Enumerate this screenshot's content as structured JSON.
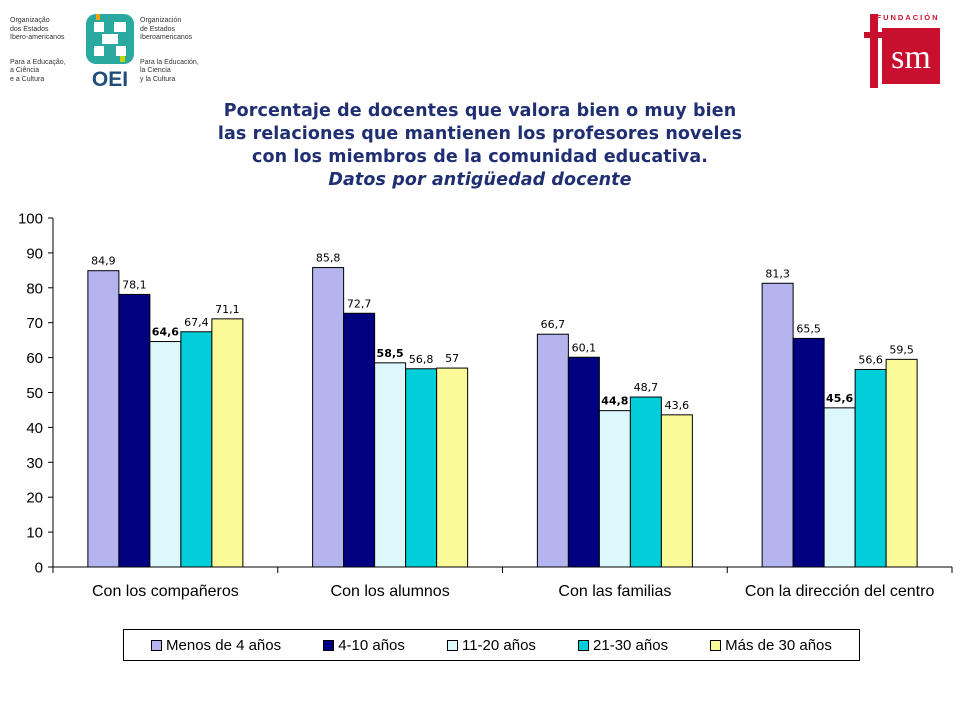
{
  "logos": {
    "oei_left_text": [
      "Organização",
      "dos Estados",
      "Ibero-americanos",
      "",
      "Para a Educação,",
      "a Ciência",
      "e a Cultura"
    ],
    "oei_right_text": [
      "Organización",
      "de Estados",
      "Iberoamericanos",
      "",
      "Para la Educación,",
      "la Ciencia",
      "y la Cultura"
    ],
    "oei_mark": "OEI",
    "fsm_top": "FUNDACIÓN",
    "fsm_mark": "sm"
  },
  "title": {
    "line1": "Porcentaje de docentes que valora bien o muy bien",
    "line2": "las relaciones que mantienen los profesores noveles",
    "line3": "con los miembros de la comunidad educativa.",
    "subtitle": "Datos por antigüedad docente"
  },
  "chart_data": {
    "type": "bar",
    "categories": [
      "Con los compañeros",
      "Con los alumnos",
      "Con las familias",
      "Con la dirección del centro"
    ],
    "series": [
      {
        "name": "Menos de 4 años",
        "color": "#b4b4ee",
        "values": [
          84.9,
          85.8,
          66.7,
          81.3
        ],
        "labels": [
          "84,9",
          "85,8",
          "66,7",
          "81,3"
        ]
      },
      {
        "name": "4-10 años",
        "color": "#000080",
        "values": [
          78.1,
          72.7,
          60.1,
          65.5
        ],
        "labels": [
          "78,1",
          "72,7",
          "60,1",
          "65,5"
        ]
      },
      {
        "name": "11-20 años",
        "color": "#ddf8fc",
        "values": [
          64.6,
          58.5,
          44.8,
          45.6
        ],
        "labels": [
          "64,6",
          "58,5",
          "44,8",
          "45,6"
        ]
      },
      {
        "name": "21-30 años",
        "color": "#00ced9",
        "values": [
          67.4,
          56.8,
          48.7,
          56.6
        ],
        "labels": [
          "67,4",
          "56,8",
          "48,7",
          "56,6"
        ]
      },
      {
        "name": "Más de 30 años",
        "color": "#fafa99",
        "values": [
          71.1,
          57,
          43.6,
          59.5
        ],
        "labels": [
          "71,1",
          "57",
          "43,6",
          "59,5"
        ]
      }
    ],
    "ylim": [
      0,
      100
    ],
    "yticks": [
      "0",
      "10",
      "20",
      "30",
      "40",
      "50",
      "60",
      "70",
      "80",
      "90",
      "100"
    ],
    "title": "Porcentaje de docentes que valora bien o muy bien las relaciones que mantienen los profesores noveles con los miembros de la comunidad educativa.",
    "subtitle": "Datos por antigüedad docente",
    "xlabel": "",
    "ylabel": "",
    "grid": false,
    "legend_position": "bottom"
  }
}
